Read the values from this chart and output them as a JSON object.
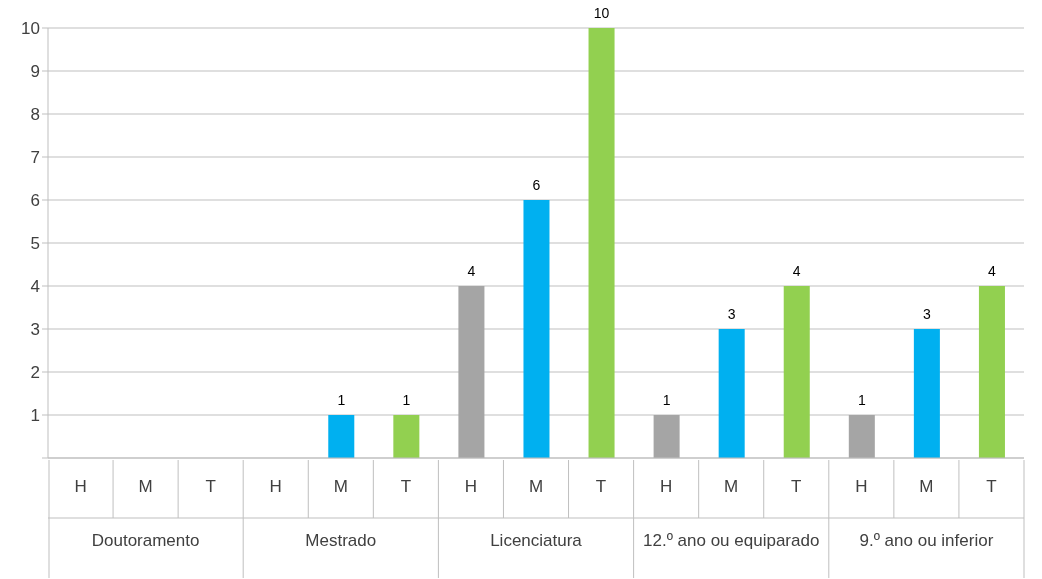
{
  "chart_data": {
    "type": "bar",
    "categories": [
      "H",
      "M",
      "T",
      "H",
      "M",
      "T",
      "H",
      "M",
      "T",
      "H",
      "M",
      "T",
      "H",
      "M",
      "T"
    ],
    "values": [
      null,
      null,
      null,
      null,
      1,
      1,
      4,
      6,
      10,
      1,
      3,
      4,
      1,
      3,
      4
    ],
    "colors": [
      "#a5a5a5",
      "#00b0f0",
      "#92d050",
      "#a5a5a5",
      "#00b0f0",
      "#92d050",
      "#a5a5a5",
      "#00b0f0",
      "#92d050",
      "#a5a5a5",
      "#00b0f0",
      "#92d050",
      "#a5a5a5",
      "#00b0f0",
      "#92d050"
    ],
    "annotations": [
      "Doutoramento",
      "Mestrado",
      "Licenciatura",
      "12.º ano ou equiparado",
      "9.º ano ou inferior"
    ],
    "ylim": [
      0,
      10
    ],
    "yticks": [
      {
        "value": 0,
        "label": null
      },
      1,
      2,
      3,
      4,
      5,
      6,
      7,
      8,
      9,
      10
    ],
    "grid": "y",
    "data_labels": true,
    "legend": false
  }
}
